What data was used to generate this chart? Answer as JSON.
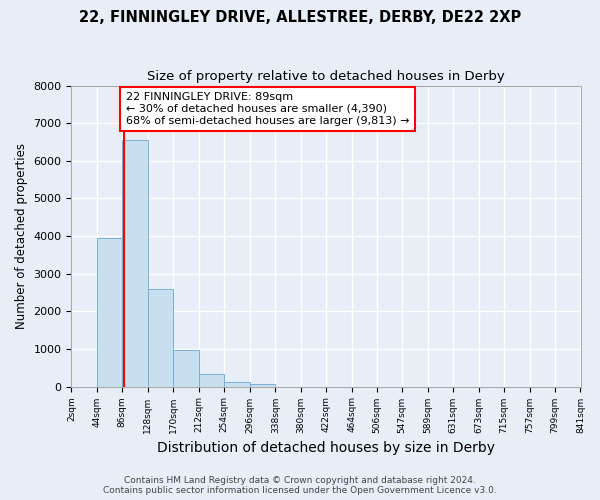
{
  "title1": "22, FINNINGLEY DRIVE, ALLESTREE, DERBY, DE22 2XP",
  "title2": "Size of property relative to detached houses in Derby",
  "xlabel": "Distribution of detached houses by size in Derby",
  "ylabel": "Number of detached properties",
  "bin_labels": [
    "2sqm",
    "44sqm",
    "86sqm",
    "128sqm",
    "170sqm",
    "212sqm",
    "254sqm",
    "296sqm",
    "338sqm",
    "380sqm",
    "422sqm",
    "464sqm",
    "506sqm",
    "547sqm",
    "589sqm",
    "631sqm",
    "673sqm",
    "715sqm",
    "757sqm",
    "799sqm",
    "841sqm"
  ],
  "bin_edges": [
    2,
    44,
    86,
    128,
    170,
    212,
    254,
    296,
    338,
    380,
    422,
    464,
    506,
    547,
    589,
    631,
    673,
    715,
    757,
    799,
    841
  ],
  "bar_heights": [
    0,
    3950,
    6550,
    2600,
    960,
    330,
    130,
    70,
    0,
    0,
    0,
    0,
    0,
    0,
    0,
    0,
    0,
    0,
    0,
    0
  ],
  "bar_color": "#c8dff0",
  "bar_edge_color": "#7bafd4",
  "property_value": 89,
  "vline_color": "red",
  "ylim": [
    0,
    8000
  ],
  "annotation_text": "22 FINNINGLEY DRIVE: 89sqm\n← 30% of detached houses are smaller (4,390)\n68% of semi-detached houses are larger (9,813) →",
  "annotation_box_color": "white",
  "annotation_box_edge_color": "red",
  "footer1": "Contains HM Land Registry data © Crown copyright and database right 2024.",
  "footer2": "Contains public sector information licensed under the Open Government Licence v3.0.",
  "bg_color": "#e8eef8",
  "grid_color": "white",
  "title1_fontsize": 10.5,
  "title2_fontsize": 9.5,
  "xlabel_fontsize": 10,
  "ylabel_fontsize": 8.5,
  "footer_fontsize": 6.5
}
